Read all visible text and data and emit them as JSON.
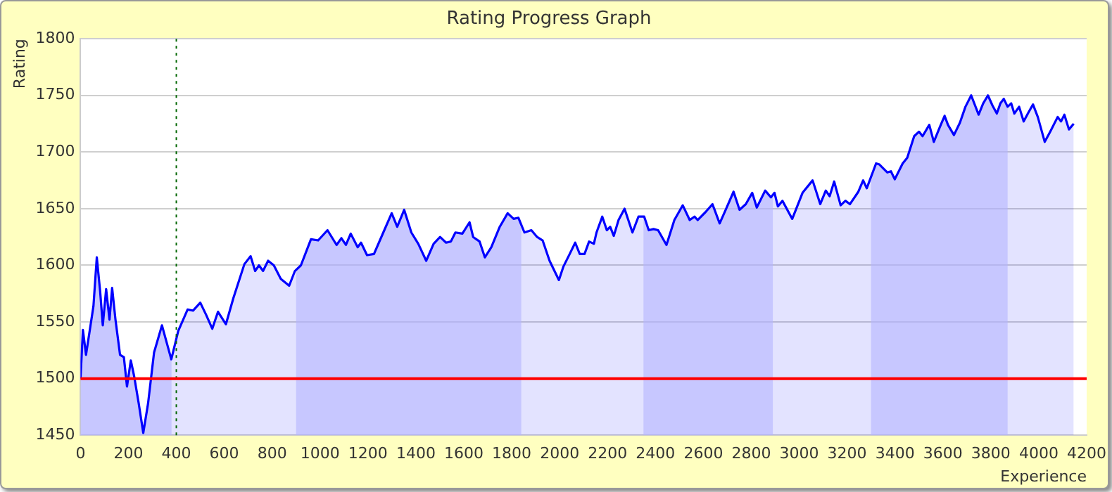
{
  "chart_data": {
    "type": "area",
    "title": "Rating Progress Graph",
    "xlabel": "Experience",
    "ylabel": "Rating",
    "x": [
      0,
      10,
      23,
      39,
      54,
      68,
      82,
      93,
      107,
      121,
      132,
      146,
      165,
      181,
      194,
      210,
      224,
      243,
      262,
      282,
      307,
      340,
      379,
      408,
      447,
      470,
      500,
      525,
      550,
      574,
      607,
      638,
      684,
      710,
      729,
      745,
      762,
      783,
      807,
      836,
      871,
      895,
      920,
      962,
      992,
      1031,
      1069,
      1089,
      1108,
      1128,
      1157,
      1171,
      1196,
      1225,
      1264,
      1299,
      1322,
      1351,
      1381,
      1410,
      1443,
      1474,
      1501,
      1526,
      1546,
      1565,
      1594,
      1624,
      1639,
      1666,
      1688,
      1715,
      1750,
      1783,
      1808,
      1828,
      1853,
      1882,
      1906,
      1929,
      1958,
      1997,
      2016,
      2042,
      2065,
      2084,
      2104,
      2123,
      2143,
      2154,
      2178,
      2197,
      2211,
      2226,
      2246,
      2271,
      2304,
      2329,
      2353,
      2372,
      2392,
      2411,
      2446,
      2479,
      2514,
      2543,
      2563,
      2576,
      2609,
      2638,
      2668,
      2693,
      2726,
      2751,
      2777,
      2804,
      2823,
      2858,
      2882,
      2897,
      2911,
      2930,
      2971,
      3014,
      3056,
      3088,
      3111,
      3127,
      3146,
      3173,
      3193,
      3212,
      3247,
      3267,
      3282,
      3321,
      3335,
      3354,
      3368,
      3383,
      3399,
      3432,
      3451,
      3480,
      3500,
      3515,
      3543,
      3562,
      3587,
      3607,
      3621,
      3646,
      3671,
      3694,
      3718,
      3749,
      3768,
      3788,
      3807,
      3825,
      3840,
      3854,
      3870,
      3885,
      3898,
      3918,
      3937,
      3957,
      3976,
      3996,
      4025,
      4048,
      4079,
      4093,
      4107,
      4126,
      4146
    ],
    "series": [
      {
        "color": "#0000ff",
        "values": [
          1500,
          1543,
          1521,
          1543,
          1564,
          1607,
          1577,
          1547,
          1579,
          1552,
          1580,
          1552,
          1521,
          1519,
          1493,
          1516,
          1502,
          1478,
          1452,
          1478,
          1523,
          1547,
          1517,
          1542,
          1561,
          1560,
          1567,
          1556,
          1544,
          1559,
          1548,
          1571,
          1601,
          1608,
          1595,
          1600,
          1595,
          1604,
          1600,
          1588,
          1582,
          1595,
          1600,
          1623,
          1622,
          1631,
          1618,
          1624,
          1618,
          1628,
          1616,
          1620,
          1609,
          1610,
          1629,
          1646,
          1634,
          1649,
          1629,
          1619,
          1604,
          1619,
          1625,
          1620,
          1621,
          1629,
          1628,
          1638,
          1625,
          1621,
          1607,
          1616,
          1634,
          1646,
          1641,
          1642,
          1629,
          1631,
          1625,
          1622,
          1604,
          1587,
          1599,
          1610,
          1620,
          1610,
          1610,
          1621,
          1619,
          1629,
          1643,
          1631,
          1634,
          1626,
          1640,
          1650,
          1629,
          1643,
          1643,
          1631,
          1632,
          1631,
          1618,
          1640,
          1653,
          1640,
          1643,
          1640,
          1647,
          1654,
          1637,
          1649,
          1665,
          1649,
          1654,
          1664,
          1651,
          1666,
          1660,
          1664,
          1652,
          1657,
          1641,
          1664,
          1675,
          1654,
          1666,
          1661,
          1674,
          1653,
          1657,
          1654,
          1665,
          1675,
          1668,
          1690,
          1689,
          1685,
          1682,
          1683,
          1676,
          1690,
          1695,
          1714,
          1718,
          1714,
          1724,
          1709,
          1722,
          1732,
          1724,
          1715,
          1726,
          1740,
          1750,
          1733,
          1743,
          1750,
          1741,
          1734,
          1743,
          1747,
          1740,
          1743,
          1734,
          1740,
          1727,
          1735,
          1742,
          1731,
          1709,
          1718,
          1731,
          1727,
          1733,
          1720,
          1725
        ]
      }
    ],
    "xlim": [
      0,
      4200
    ],
    "xticks": [
      0,
      200,
      400,
      600,
      800,
      1000,
      1200,
      1400,
      1600,
      1800,
      2000,
      2200,
      2400,
      2600,
      2800,
      3000,
      3200,
      3400,
      3600,
      3800,
      4000,
      4200
    ],
    "ylim": [
      1450,
      1800
    ],
    "yticks": [
      1450,
      1500,
      1550,
      1600,
      1650,
      1700,
      1750,
      1800
    ],
    "grid": "y",
    "legend": false,
    "ref_lines": [
      {
        "axis": "x",
        "value": 400,
        "color": "#006600",
        "line_style": "dotted"
      },
      {
        "axis": "y",
        "value": 1500,
        "color": "#ff0000",
        "line_style": "solid"
      }
    ],
    "bands": [
      {
        "axis": "x",
        "from": 0,
        "to": 380,
        "color": "#ccccff"
      },
      {
        "axis": "x",
        "from": 900,
        "to": 1840,
        "color": "#ccccff"
      },
      {
        "axis": "x",
        "from": 2350,
        "to": 2890,
        "color": "#ccccff"
      },
      {
        "axis": "x",
        "from": 3300,
        "to": 3870,
        "color": "#ccccff"
      }
    ]
  }
}
